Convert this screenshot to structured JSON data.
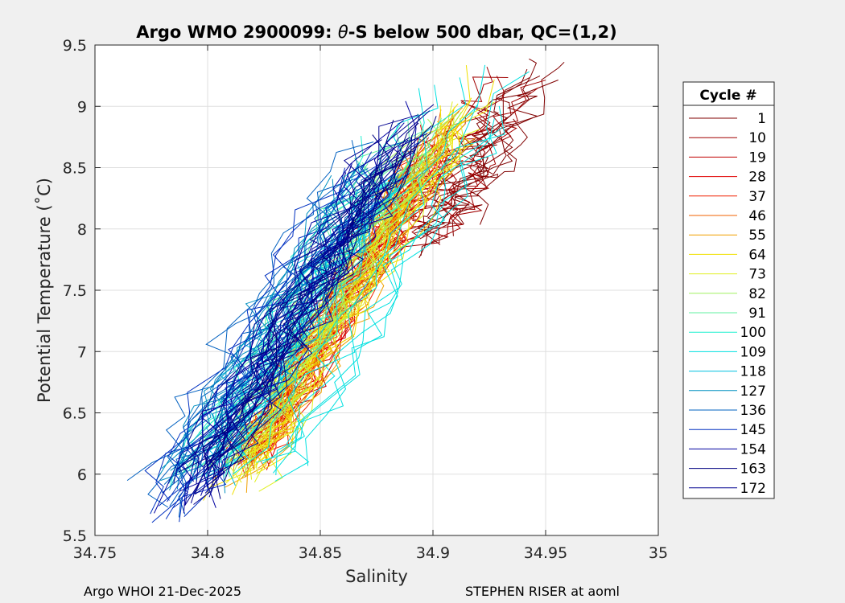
{
  "chart_data": {
    "type": "line",
    "title_prefix": "Argo WMO 2900099: ",
    "title_theta": "θ",
    "title_suffix": "-S below 500 dbar,  QC=(1,2)",
    "xlabel": "Salinity",
    "ylabel": "Potential Temperature (˚C)",
    "xlim": [
      34.75,
      35
    ],
    "ylim": [
      5.5,
      9.5
    ],
    "xticks": [
      "34.75",
      "34.8",
      "34.85",
      "34.9",
      "34.95",
      "35"
    ],
    "yticks": [
      "5.5",
      "6",
      "6.5",
      "7",
      "7.5",
      "8",
      "8.5",
      "9",
      "9.5"
    ],
    "grid": true,
    "legend": {
      "title": "Cycle #",
      "position": "right",
      "entries": [
        {
          "label": "1",
          "color": "#800000"
        },
        {
          "label": "10",
          "color": "#a00000"
        },
        {
          "label": "19",
          "color": "#c00000"
        },
        {
          "label": "28",
          "color": "#e00000"
        },
        {
          "label": "37",
          "color": "#f02000"
        },
        {
          "label": "46",
          "color": "#f06000"
        },
        {
          "label": "55",
          "color": "#f0a000"
        },
        {
          "label": "64",
          "color": "#f0e000"
        },
        {
          "label": "73",
          "color": "#e0f020"
        },
        {
          "label": "82",
          "color": "#a0f060"
        },
        {
          "label": "91",
          "color": "#60f0a0"
        },
        {
          "label": "100",
          "color": "#20f0d0"
        },
        {
          "label": "109",
          "color": "#00e0e0"
        },
        {
          "label": "118",
          "color": "#00c0e0"
        },
        {
          "label": "127",
          "color": "#0090c0"
        },
        {
          "label": "136",
          "color": "#0060c0"
        },
        {
          "label": "145",
          "color": "#0030c0"
        },
        {
          "label": "154",
          "color": "#0000a0"
        },
        {
          "label": "163",
          "color": "#000080"
        },
        {
          "label": "172",
          "color": "#000090"
        }
      ]
    },
    "series_summary": [
      {
        "cycle": 1,
        "s_center": 34.925,
        "t_top": 9.45,
        "t_bottom": 7.8,
        "s_spread": 0.015
      },
      {
        "cycle": 10,
        "s_center": 34.915,
        "t_top": 9.4,
        "t_bottom": 7.7,
        "s_spread": 0.02
      },
      {
        "cycle": 19,
        "s_center": 34.862,
        "t_top": 8.9,
        "t_bottom": 6.0,
        "s_spread": 0.012
      },
      {
        "cycle": 28,
        "s_center": 34.86,
        "t_top": 8.8,
        "t_bottom": 6.0,
        "s_spread": 0.012
      },
      {
        "cycle": 37,
        "s_center": 34.862,
        "t_top": 8.9,
        "t_bottom": 6.0,
        "s_spread": 0.014
      },
      {
        "cycle": 46,
        "s_center": 34.864,
        "t_top": 9.0,
        "t_bottom": 6.0,
        "s_spread": 0.015
      },
      {
        "cycle": 55,
        "s_center": 34.866,
        "t_top": 9.2,
        "t_bottom": 5.85,
        "s_spread": 0.015
      },
      {
        "cycle": 64,
        "s_center": 34.868,
        "t_top": 9.3,
        "t_bottom": 5.8,
        "s_spread": 0.015
      },
      {
        "cycle": 73,
        "s_center": 34.865,
        "t_top": 9.1,
        "t_bottom": 5.8,
        "s_spread": 0.015
      },
      {
        "cycle": 82,
        "s_center": 34.855,
        "t_top": 9.1,
        "t_bottom": 5.9,
        "s_spread": 0.016
      },
      {
        "cycle": 91,
        "s_center": 34.845,
        "t_top": 9.0,
        "t_bottom": 5.9,
        "s_spread": 0.018
      },
      {
        "cycle": 100,
        "s_center": 34.84,
        "t_top": 8.9,
        "t_bottom": 5.8,
        "s_spread": 0.02
      },
      {
        "cycle": 109,
        "s_center": 34.87,
        "t_top": 9.4,
        "t_bottom": 5.9,
        "s_spread": 0.035
      },
      {
        "cycle": 118,
        "s_center": 34.835,
        "t_top": 8.6,
        "t_bottom": 5.9,
        "s_spread": 0.03
      },
      {
        "cycle": 127,
        "s_center": 34.83,
        "t_top": 8.6,
        "t_bottom": 5.8,
        "s_spread": 0.025
      },
      {
        "cycle": 136,
        "s_center": 34.825,
        "t_top": 8.8,
        "t_bottom": 5.6,
        "s_spread": 0.025
      },
      {
        "cycle": 145,
        "s_center": 34.83,
        "t_top": 8.9,
        "t_bottom": 5.6,
        "s_spread": 0.025
      },
      {
        "cycle": 154,
        "s_center": 34.84,
        "t_top": 9.0,
        "t_bottom": 5.7,
        "s_spread": 0.02
      },
      {
        "cycle": 163,
        "s_center": 34.845,
        "t_top": 9.0,
        "t_bottom": 5.8,
        "s_spread": 0.02
      },
      {
        "cycle": 172,
        "s_center": 34.84,
        "t_top": 9.0,
        "t_bottom": 5.7,
        "s_spread": 0.02
      }
    ]
  },
  "footer": {
    "left": "Argo WHOI 21-Dec-2025",
    "right": "STEPHEN RISER at aoml"
  }
}
